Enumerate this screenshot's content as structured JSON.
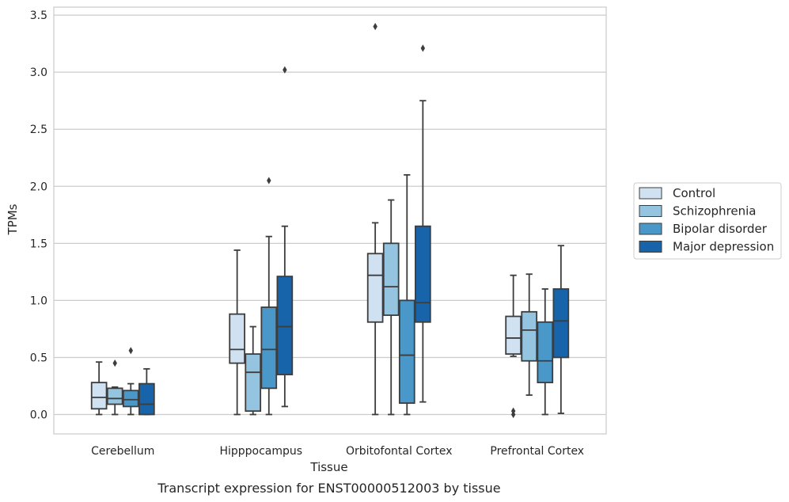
{
  "chart_data": {
    "type": "box",
    "xlabel": "Tissue",
    "ylabel": "TPMs",
    "caption": "Transcript expression for ENST00000512003 by tissue",
    "ylim": [
      -0.17,
      3.57
    ],
    "yticks": [
      "0.0",
      "0.5",
      "1.0",
      "1.5",
      "2.0",
      "2.5",
      "3.0",
      "3.5"
    ],
    "grid": "horizontal",
    "legend_position": "right",
    "categories": [
      "Cerebellum",
      "Hipppocampus",
      "Orbitofontal Cortex",
      "Prefrontal Cortex"
    ],
    "series": [
      {
        "name": "Control",
        "color": "#d0e1f2",
        "boxes": [
          {
            "whislo": 0.0,
            "q1": 0.05,
            "med": 0.15,
            "q3": 0.28,
            "whishi": 0.46,
            "fliers": []
          },
          {
            "whislo": 0.0,
            "q1": 0.45,
            "med": 0.57,
            "q3": 0.88,
            "whishi": 1.44,
            "fliers": []
          },
          {
            "whislo": 0.0,
            "q1": 0.81,
            "med": 1.22,
            "q3": 1.41,
            "whishi": 1.68,
            "fliers": [
              3.4
            ]
          },
          {
            "whislo": 0.51,
            "q1": 0.53,
            "med": 0.67,
            "q3": 0.86,
            "whishi": 1.22,
            "fliers": [
              0.0,
              0.03
            ]
          }
        ]
      },
      {
        "name": "Schizophrenia",
        "color": "#94c4df",
        "boxes": [
          {
            "whislo": 0.0,
            "q1": 0.09,
            "med": 0.14,
            "q3": 0.23,
            "whishi": 0.24,
            "fliers": [
              0.45
            ]
          },
          {
            "whislo": 0.0,
            "q1": 0.03,
            "med": 0.37,
            "q3": 0.53,
            "whishi": 0.77,
            "fliers": []
          },
          {
            "whislo": 0.0,
            "q1": 0.87,
            "med": 1.12,
            "q3": 1.5,
            "whishi": 1.88,
            "fliers": []
          },
          {
            "whislo": 0.17,
            "q1": 0.47,
            "med": 0.74,
            "q3": 0.9,
            "whishi": 1.23,
            "fliers": []
          }
        ]
      },
      {
        "name": "Bipolar disorder",
        "color": "#4a98c9",
        "boxes": [
          {
            "whislo": 0.0,
            "q1": 0.07,
            "med": 0.13,
            "q3": 0.21,
            "whishi": 0.27,
            "fliers": [
              0.56
            ]
          },
          {
            "whislo": 0.0,
            "q1": 0.23,
            "med": 0.57,
            "q3": 0.94,
            "whishi": 1.56,
            "fliers": [
              2.05
            ]
          },
          {
            "whislo": 0.0,
            "q1": 0.1,
            "med": 0.52,
            "q3": 1.0,
            "whishi": 2.1,
            "fliers": []
          },
          {
            "whislo": 0.0,
            "q1": 0.28,
            "med": 0.47,
            "q3": 0.81,
            "whishi": 1.1,
            "fliers": []
          }
        ]
      },
      {
        "name": "Major depression",
        "color": "#1764ab",
        "boxes": [
          {
            "whislo": 0.0,
            "q1": 0.0,
            "med": 0.09,
            "q3": 0.27,
            "whishi": 0.4,
            "fliers": []
          },
          {
            "whislo": 0.07,
            "q1": 0.35,
            "med": 0.77,
            "q3": 1.21,
            "whishi": 1.65,
            "fliers": [
              3.02
            ]
          },
          {
            "whislo": 0.11,
            "q1": 0.81,
            "med": 0.98,
            "q3": 1.65,
            "whishi": 2.75,
            "fliers": [
              3.21
            ]
          },
          {
            "whislo": 0.01,
            "q1": 0.5,
            "med": 0.82,
            "q3": 1.1,
            "whishi": 1.48,
            "fliers": []
          }
        ]
      }
    ]
  }
}
